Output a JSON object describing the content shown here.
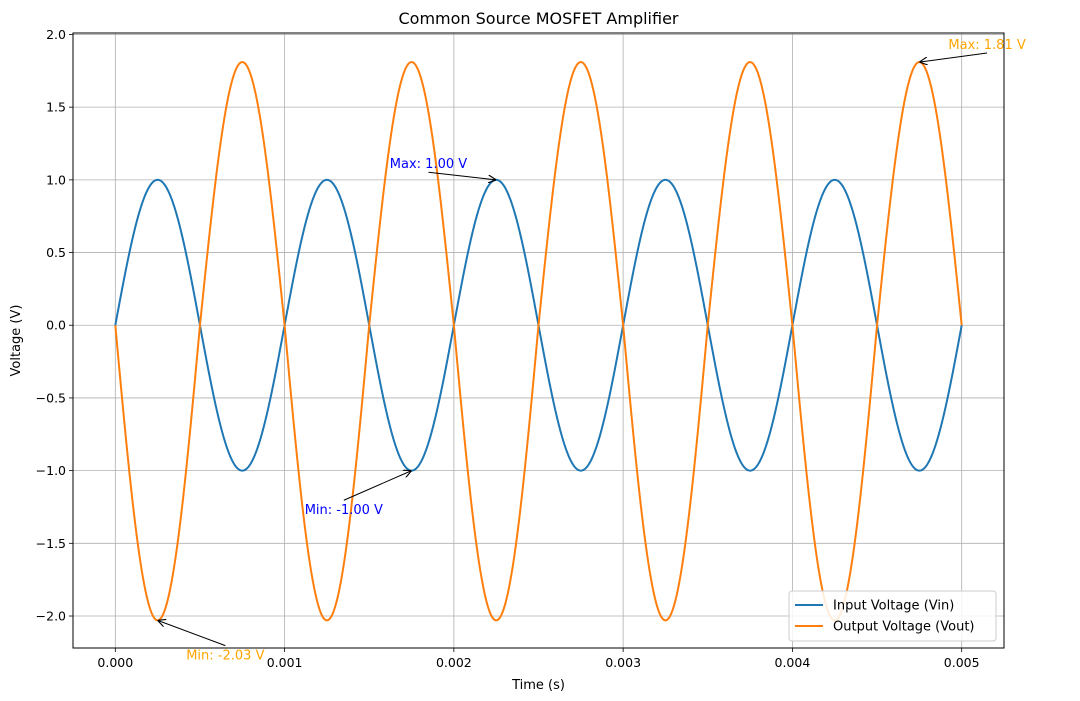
{
  "chart_data": {
    "type": "line",
    "title": "Common Source MOSFET Amplifier",
    "xlabel": "Time (s)",
    "ylabel": "Voltage (V)",
    "xlim": [
      -0.00025,
      0.00525
    ],
    "ylim": [
      -2.22,
      2.01
    ],
    "xticks": [
      0.0,
      0.001,
      0.002,
      0.003,
      0.004,
      0.005
    ],
    "xtick_labels": [
      "0.000",
      "0.001",
      "0.002",
      "0.003",
      "0.004",
      "0.005"
    ],
    "yticks": [
      -2.0,
      -1.5,
      -1.0,
      -0.5,
      0.0,
      0.5,
      1.0,
      1.5,
      2.0
    ],
    "ytick_labels": [
      "−2.0",
      "−1.5",
      "−1.0",
      "−0.5",
      "0.0",
      "0.5",
      "1.0",
      "1.5",
      "2.0"
    ],
    "grid": true,
    "legend_position": "lower-right",
    "series": [
      {
        "name": "Input Voltage (Vin)",
        "color": "#1f77b4",
        "function": "sine",
        "amplitude": 1.0,
        "offset": 0.0,
        "frequency_hz": 1000,
        "t_start": 0.0,
        "t_end": 0.005
      },
      {
        "name": "Output Voltage (Vout)",
        "color": "#ff7f0e",
        "function": "inverted-amplified-sine",
        "positive_peak": 1.81,
        "negative_peak": -2.03,
        "frequency_hz": 1000,
        "t_start": 0.0,
        "t_end": 0.005
      }
    ],
    "annotations": [
      {
        "text": "Max: 1.00 V",
        "color": "#0000ff",
        "x": 0.00225,
        "y": 1.0,
        "text_x": 0.00185,
        "text_y": 1.08
      },
      {
        "text": "Min: -1.00 V",
        "color": "#0000ff",
        "x": 0.00175,
        "y": -1.0,
        "text_x": 0.00135,
        "text_y": -1.3
      },
      {
        "text": "Max: 1.81 V",
        "color": "#ffa500",
        "x": 0.00475,
        "y": 1.81,
        "text_x": 0.00515,
        "text_y": 1.9
      },
      {
        "text": "Min: -2.03 V",
        "color": "#ffa500",
        "x": 0.00025,
        "y": -2.03,
        "text_x": 0.00065,
        "text_y": -2.3
      }
    ]
  }
}
